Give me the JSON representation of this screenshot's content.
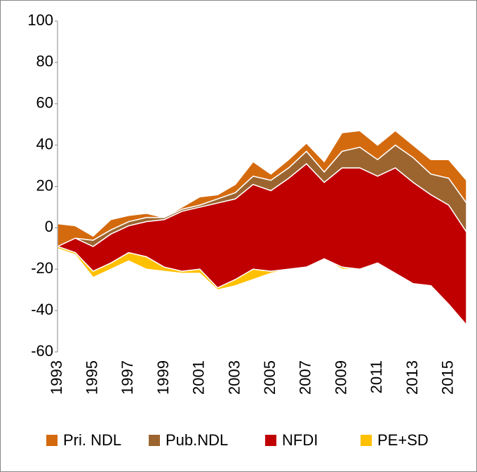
{
  "chart_data": {
    "type": "area",
    "x": [
      1993,
      1994,
      1995,
      1996,
      1997,
      1998,
      1999,
      2000,
      2001,
      2002,
      2003,
      2004,
      2005,
      2006,
      2007,
      2008,
      2009,
      2010,
      2011,
      2012,
      2013,
      2014,
      2015,
      2016
    ],
    "xlim": [
      1993,
      2016
    ],
    "xticks": [
      1993,
      1995,
      1997,
      1999,
      2001,
      2003,
      2005,
      2007,
      2009,
      2011,
      2013,
      2015
    ],
    "ylim": [
      -60,
      100
    ],
    "yticks": [
      -60,
      -40,
      -20,
      0,
      20,
      40,
      60,
      80,
      100
    ],
    "legend": "bottom",
    "series": [
      {
        "name": "Pri. NDL",
        "color": "#d46a0e",
        "values": [
          11,
          6,
          2,
          5,
          3,
          2,
          0,
          1,
          4,
          2,
          4,
          7,
          3,
          4,
          4,
          5,
          9,
          8,
          7,
          7,
          6,
          7,
          9,
          11
        ]
      },
      {
        "name": "Pub.NDL",
        "color": "#9c6530",
        "values": [
          0,
          0,
          3,
          2,
          2,
          2,
          1,
          1,
          1,
          2,
          3,
          4,
          5,
          5,
          6,
          5,
          8,
          10,
          8,
          11,
          12,
          10,
          13,
          14
        ]
      },
      {
        "name": "NFDI",
        "color": "#c00000",
        "low": [
          -9,
          -12,
          -21,
          -17,
          -12,
          -14,
          -19,
          -21,
          -20,
          -29,
          -25,
          -20,
          -21,
          -20,
          -19,
          -15,
          -19,
          -20,
          -17,
          -22,
          -27,
          -28,
          -37,
          -47
        ],
        "high": [
          -9,
          -5,
          -9,
          -3,
          1,
          3,
          4,
          8,
          10,
          12,
          14,
          21,
          18,
          24,
          31,
          22,
          29,
          29,
          25,
          29,
          22,
          16,
          11,
          -2
        ]
      },
      {
        "name": "PE+SD",
        "color": "#ffc000",
        "values": [
          -1,
          -1,
          -3,
          -3,
          -4,
          -6,
          -2,
          -1,
          -2,
          -1,
          -3,
          -5,
          -1,
          0,
          0,
          0,
          -1,
          0,
          0,
          0,
          0,
          0,
          0,
          0
        ]
      }
    ]
  }
}
